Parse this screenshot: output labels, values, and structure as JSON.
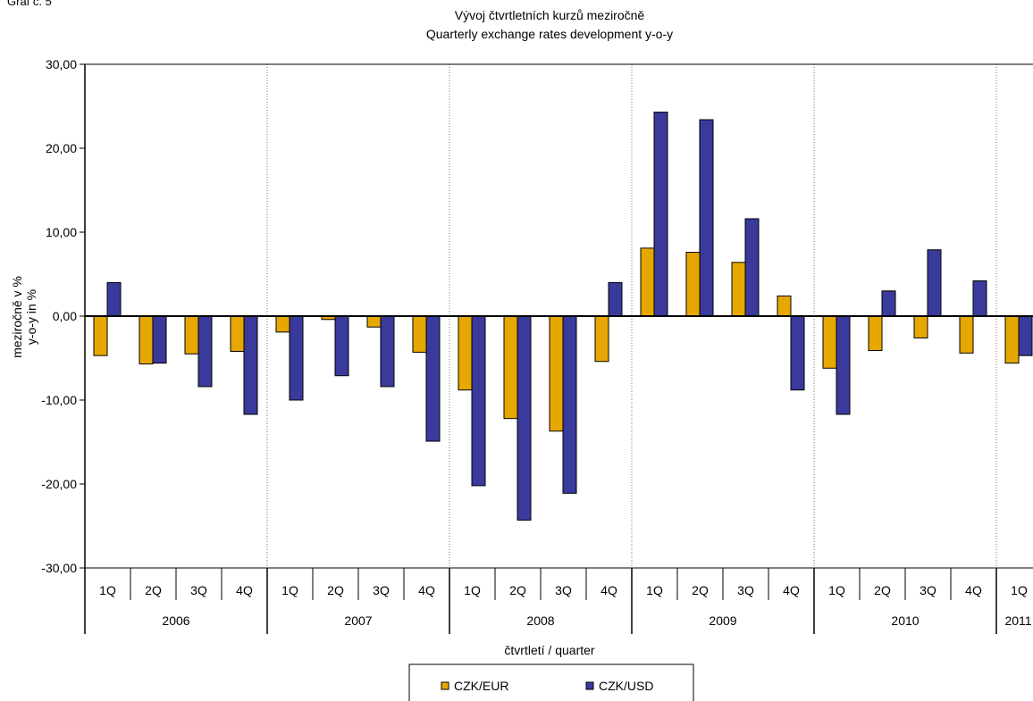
{
  "corner_label": "Graf č. 5",
  "chart_data": {
    "type": "bar",
    "title": "Vývoj čtvrtletních kurzů meziročně",
    "subtitle": "Quarterly exchange rates development y-o-y",
    "ylabel_line1": "meziročně v %",
    "ylabel_line2": "y-o-y in %",
    "xlabel": "čtvrtletí / quarter",
    "ylim": [
      -30,
      30
    ],
    "yticks": [
      "30,00",
      "20,00",
      "10,00",
      "0,00",
      "-10,00",
      "-20,00",
      "-30,00"
    ],
    "ytick_values": [
      30,
      20,
      10,
      0,
      -10,
      -20,
      -30
    ],
    "categories": [
      "1Q",
      "2Q",
      "3Q",
      "4Q",
      "1Q",
      "2Q",
      "3Q",
      "4Q",
      "1Q",
      "2Q",
      "3Q",
      "4Q",
      "1Q",
      "2Q",
      "3Q",
      "4Q",
      "1Q",
      "2Q",
      "3Q",
      "4Q",
      "1Q"
    ],
    "years": [
      {
        "label": "2006",
        "quarters": 4
      },
      {
        "label": "2007",
        "quarters": 4
      },
      {
        "label": "2008",
        "quarters": 4
      },
      {
        "label": "2009",
        "quarters": 4
      },
      {
        "label": "2010",
        "quarters": 4
      },
      {
        "label": "2011",
        "quarters": 1
      }
    ],
    "grid": "vertical dotted lines between years",
    "legend_position": "bottom",
    "series": [
      {
        "name": "CZK/EUR",
        "color": "#e6a800",
        "values": [
          -4.7,
          -5.7,
          -4.5,
          -4.2,
          -1.9,
          -0.4,
          -1.3,
          -4.3,
          -8.8,
          -12.2,
          -13.7,
          -5.4,
          8.1,
          7.6,
          6.4,
          2.4,
          -6.2,
          -4.1,
          -2.6,
          -4.4,
          -5.6
        ]
      },
      {
        "name": "CZK/USD",
        "color": "#3a3a9c",
        "values": [
          4.0,
          -5.6,
          -8.4,
          -11.7,
          -10.0,
          -7.1,
          -8.4,
          -14.9,
          -20.2,
          -24.3,
          -21.1,
          4.0,
          24.3,
          23.4,
          11.6,
          -8.8,
          -11.7,
          3.0,
          7.9,
          4.2,
          -4.7
        ]
      }
    ]
  }
}
